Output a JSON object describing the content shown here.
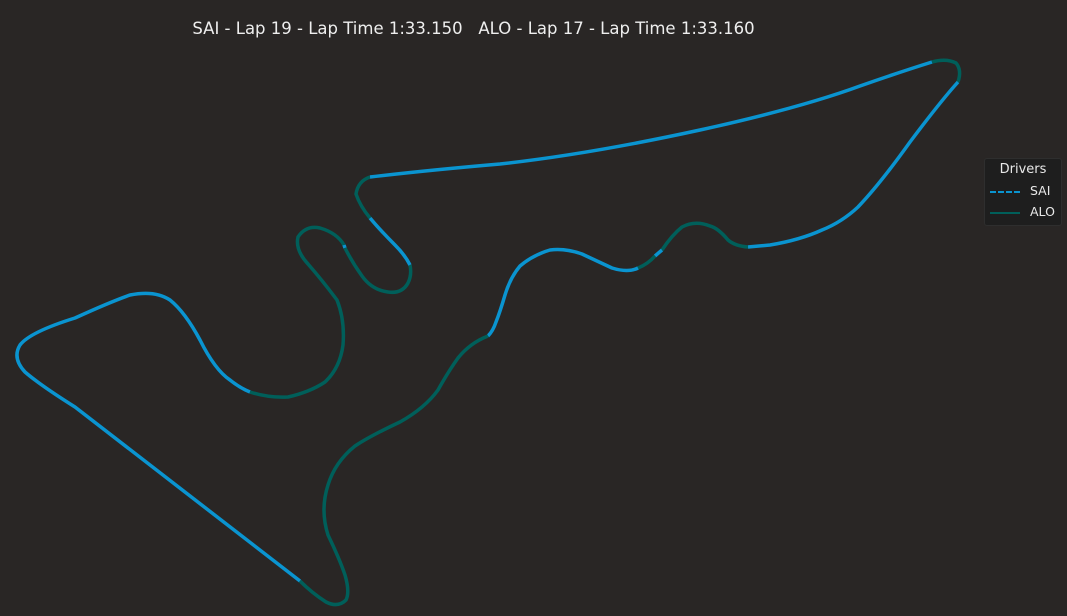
{
  "title": "SAI - Lap 19 - Lap Time 1:33.150   ALO - Lap 17 - Lap Time 1:33.160",
  "colors": {
    "background": "#292625",
    "SAI": "#0a94d0",
    "ALO": "#005f5a"
  },
  "legend": {
    "title": "Drivers",
    "placement": "right",
    "entries": [
      {
        "name": "SAI",
        "style": "dashed",
        "color": "#0a94d0"
      },
      {
        "name": "ALO",
        "style": "solid",
        "color": "#005f5a"
      }
    ]
  },
  "chart_data": {
    "type": "line",
    "description_of_encoding": "Track map; each segment colored by the faster driver",
    "axes_visible": false,
    "series": [
      {
        "name": "SAI"
      },
      {
        "name": "ALO"
      }
    ]
  }
}
